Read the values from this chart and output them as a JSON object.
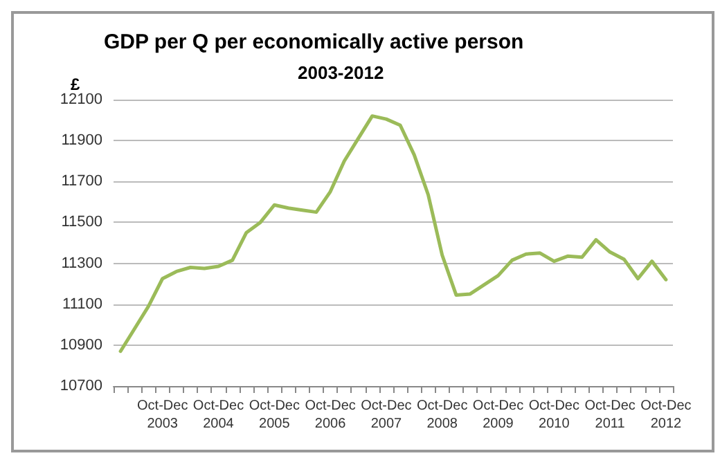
{
  "chart_data": {
    "type": "line",
    "title": "GDP per Q per economically active person",
    "subtitle": "2003-2012",
    "ylabel": "£",
    "categories": [
      null,
      null,
      null,
      "Oct-Dec 2003",
      null,
      null,
      null,
      "Oct-Dec 2004",
      null,
      null,
      null,
      "Oct-Dec 2005",
      null,
      null,
      null,
      "Oct-Dec 2006",
      null,
      null,
      null,
      "Oct-Dec 2007",
      null,
      null,
      null,
      "Oct-Dec 2008",
      null,
      null,
      null,
      "Oct-Dec 2009",
      null,
      null,
      null,
      "Oct-Dec 2010",
      null,
      null,
      null,
      "Oct-Dec 2011",
      null,
      null,
      null,
      "Oct-Dec 2012"
    ],
    "series": [
      {
        "color": "#9bbb59",
        "values": [
          10870,
          10980,
          11090,
          11225,
          11260,
          11280,
          11275,
          11285,
          11315,
          11450,
          11500,
          11585,
          11570,
          11560,
          11550,
          11650,
          11800,
          11910,
          12020,
          12005,
          11975,
          11830,
          11635,
          11340,
          11145,
          11150,
          11195,
          11240,
          11315,
          11345,
          11350,
          11310,
          11335,
          11330,
          11415,
          11355,
          11320,
          11225,
          11310,
          11220
        ]
      }
    ],
    "ylim": [
      10700,
      12100
    ],
    "yticks": [
      10700,
      10900,
      11100,
      11300,
      11500,
      11700,
      11900,
      12100
    ],
    "grid": "y",
    "marker": "none",
    "line_style": "solid"
  }
}
